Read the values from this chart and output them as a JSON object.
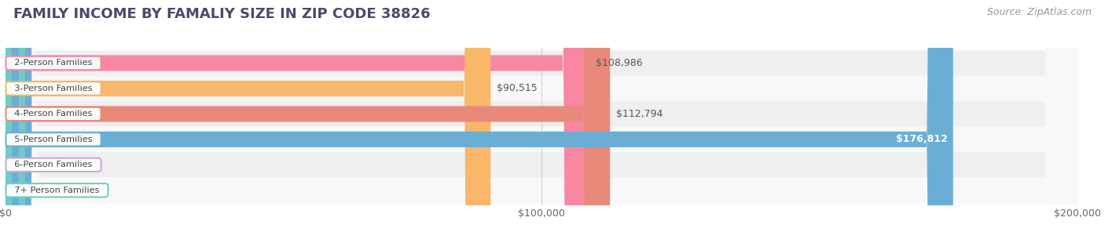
{
  "title": "FAMILY INCOME BY FAMALIY SIZE IN ZIP CODE 38826",
  "source": "Source: ZipAtlas.com",
  "categories": [
    "2-Person Families",
    "3-Person Families",
    "4-Person Families",
    "5-Person Families",
    "6-Person Families",
    "7+ Person Families"
  ],
  "values": [
    108986,
    90515,
    112794,
    176812,
    0,
    0
  ],
  "bar_colors": [
    "#f987a2",
    "#f9b76a",
    "#e8897a",
    "#6aaed6",
    "#c9a8d4",
    "#6dccc4"
  ],
  "xlim": [
    0,
    200000
  ],
  "xticks": [
    0,
    100000,
    200000
  ],
  "xtick_labels": [
    "$0",
    "$100,000",
    "$200,000"
  ],
  "title_fontsize": 13,
  "title_color": "#4a4a6a",
  "source_fontsize": 9,
  "source_color": "#999999",
  "label_fontsize": 9,
  "bar_height": 0.62,
  "bg_color": "#ffffff",
  "row_bg_even": "#efefef",
  "row_bg_odd": "#f8f8f8",
  "value_label_color_inside": "#ffffff",
  "value_label_color_outside": "#555555"
}
